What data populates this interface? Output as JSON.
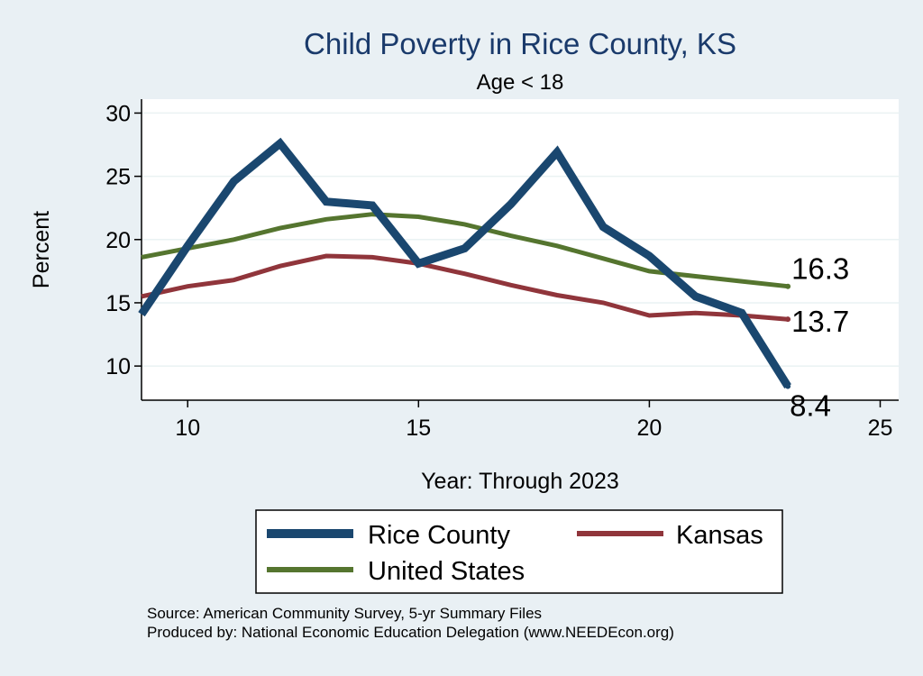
{
  "chart_data": {
    "type": "line",
    "title": "Child Poverty in Rice County, KS",
    "subtitle": "Age < 18",
    "xlabel": "Year: Through 2023",
    "ylabel": "Percent",
    "xlim": [
      9,
      25.4
    ],
    "ylim": [
      7.3,
      31.1
    ],
    "xticks": [
      10,
      15,
      20,
      25
    ],
    "yticks": [
      10,
      15,
      20,
      25,
      30
    ],
    "grid": true,
    "legend_position": "bottom",
    "series": [
      {
        "name": "Rice County",
        "color": "#1a476f",
        "width": 9,
        "x": [
          9,
          10,
          11,
          12,
          13,
          14,
          15,
          16,
          17,
          18,
          19,
          20,
          21,
          22,
          23
        ],
        "y": [
          14.1,
          19.5,
          24.6,
          27.6,
          23.0,
          22.7,
          18.1,
          19.3,
          22.8,
          26.9,
          21.0,
          18.7,
          15.5,
          14.2,
          8.4
        ],
        "end_label": "8.4"
      },
      {
        "name": "Kansas",
        "color": "#90353b",
        "width": 5,
        "x": [
          9,
          10,
          11,
          12,
          13,
          14,
          15,
          16,
          17,
          18,
          19,
          20,
          21,
          22,
          23
        ],
        "y": [
          15.5,
          16.3,
          16.8,
          17.9,
          18.7,
          18.6,
          18.1,
          17.3,
          16.4,
          15.6,
          15.0,
          14.0,
          14.2,
          14.0,
          13.7
        ],
        "end_label": "13.7"
      },
      {
        "name": "United States",
        "color": "#55752f",
        "width": 5,
        "x": [
          9,
          10,
          11,
          12,
          13,
          14,
          15,
          16,
          17,
          18,
          19,
          20,
          21,
          22,
          23
        ],
        "y": [
          18.6,
          19.3,
          20.0,
          20.9,
          21.6,
          22.0,
          21.8,
          21.2,
          20.3,
          19.5,
          18.5,
          17.5,
          17.1,
          16.7,
          16.3
        ],
        "end_label": "16.3"
      }
    ],
    "source_lines": [
      "Source: American Community Survey, 5-yr Summary Files",
      "Produced by: National Economic Education Delegation (www.NEEDEcon.org)"
    ]
  }
}
